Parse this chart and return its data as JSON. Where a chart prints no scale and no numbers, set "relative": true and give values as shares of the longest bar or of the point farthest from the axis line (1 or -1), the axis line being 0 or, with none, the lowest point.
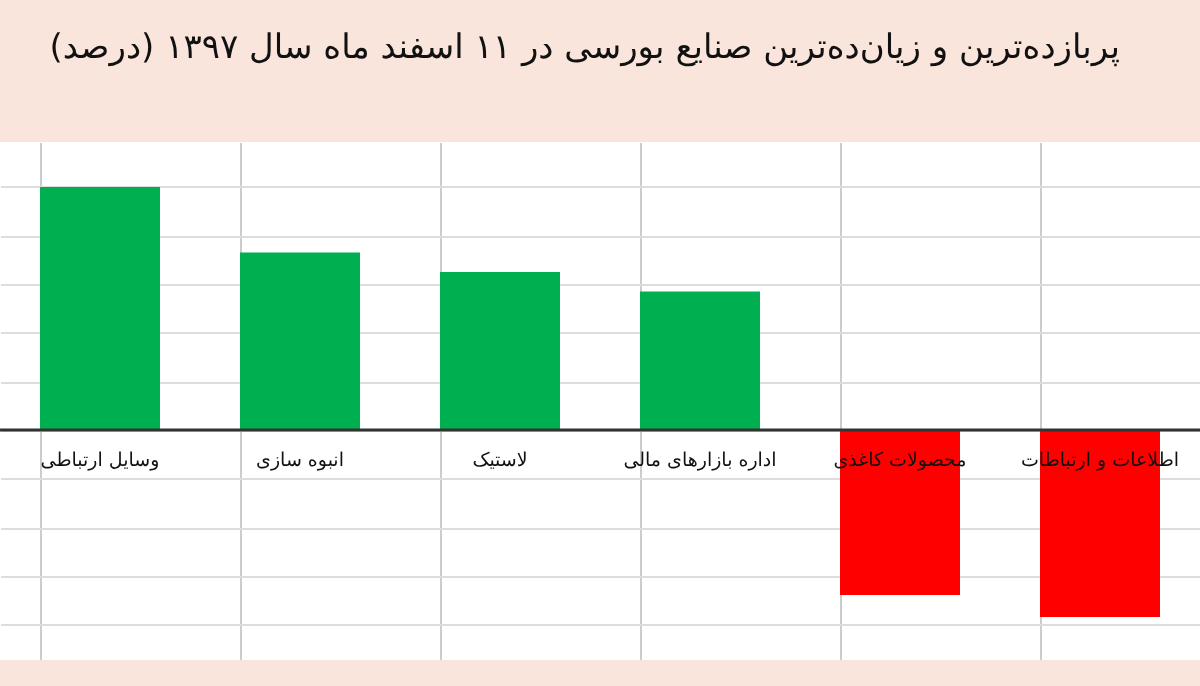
{
  "chart_data": {
    "type": "bar",
    "title": "پربازده‌ترین و زیان‌ده‌ترین صنایع بورسی در ۱۱ اسفند ماه سال ۱۳۹۷ (درصد)",
    "categories": [
      "وسایل ارتباطی",
      "انبوه سازی",
      "لاستیک",
      "اداره بازارهای مالی",
      "محصولات کاغذی",
      "اطلاعات و ارتباطات"
    ],
    "values": [
      1,
      0.73,
      0.65,
      0.57,
      -0.68,
      -0.77
    ],
    "colors": [
      "#00b050",
      "#00b050",
      "#00b050",
      "#00b050",
      "#ff0000",
      "#ff0000"
    ],
    "relative": true,
    "grid": true
  }
}
